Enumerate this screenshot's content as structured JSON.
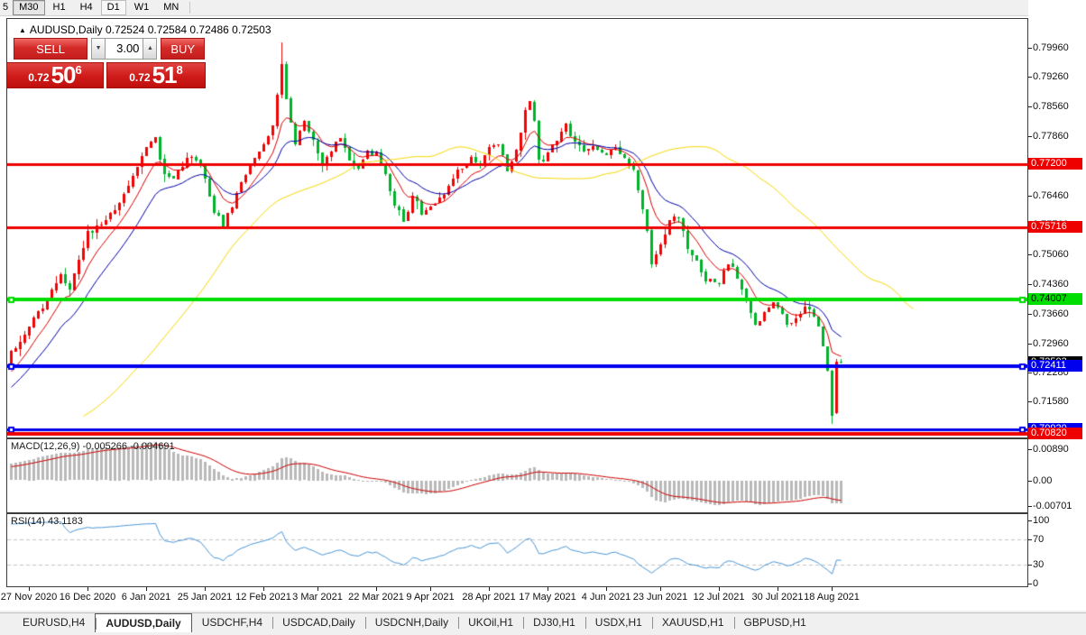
{
  "toolbar": {
    "timeframes": [
      {
        "label": "5",
        "state": "partial"
      },
      {
        "label": "M30",
        "state": "pressed"
      },
      {
        "label": "H1",
        "state": "normal"
      },
      {
        "label": "H4",
        "state": "normal"
      },
      {
        "label": "D1",
        "state": "highlight"
      },
      {
        "label": "W1",
        "state": "normal"
      },
      {
        "label": "MN",
        "state": "normal"
      }
    ]
  },
  "chart_header": {
    "collapse_icon": "▲",
    "symbol_title": "AUDUSD,Daily",
    "open": "0.72524",
    "high": "0.72584",
    "low": "0.72486",
    "close": "0.72503"
  },
  "one_click": {
    "sell_label": "SELL",
    "buy_label": "BUY",
    "volume": "3.00",
    "spinner_down": "▼",
    "spinner_up": "▲",
    "sell_small": "0.72",
    "sell_big": "50",
    "sell_sup": "6",
    "buy_small": "0.72",
    "buy_big": "51",
    "buy_sup": "8"
  },
  "indicators": {
    "macd_title": "MACD(12,26,9)",
    "macd_main_value": "-0.005266",
    "macd_signal_value": "-0.004691",
    "rsi_title": "RSI(14)",
    "rsi_value": "43.1183"
  },
  "axes": {
    "price_ticks": [
      {
        "label": "0.79960",
        "price": 0.7996
      },
      {
        "label": "0.79260",
        "price": 0.7926
      },
      {
        "label": "0.78560",
        "price": 0.7856
      },
      {
        "label": "0.77860",
        "price": 0.7786
      },
      {
        "label": "0.77160",
        "price": 0.7716
      },
      {
        "label": "0.76460",
        "price": 0.7646
      },
      {
        "label": "0.75760",
        "price": 0.7576
      },
      {
        "label": "0.75060",
        "price": 0.7506
      },
      {
        "label": "0.74360",
        "price": 0.7436
      },
      {
        "label": "0.73660",
        "price": 0.7366
      },
      {
        "label": "0.72960",
        "price": 0.7296
      },
      {
        "label": "0.72280",
        "price": 0.7228
      },
      {
        "label": "0.71580",
        "price": 0.7158
      }
    ],
    "macd_ticks": [
      {
        "label": "0.00890",
        "y": 497.5
      },
      {
        "label": "0.00",
        "y": 532.5
      },
      {
        "label": "-0.00701",
        "y": 560.5
      }
    ],
    "rsi_ticks": [
      {
        "label": "100",
        "v": 100
      },
      {
        "label": "70",
        "v": 70
      },
      {
        "label": "30",
        "v": 30
      },
      {
        "label": "0",
        "v": 0
      }
    ],
    "time_ticks": [
      {
        "label": "27 Nov 2020",
        "i": 4
      },
      {
        "label": "16 Dec 2020",
        "i": 17
      },
      {
        "label": "6 Jan 2021",
        "i": 30
      },
      {
        "label": "25 Jan 2021",
        "i": 43
      },
      {
        "label": "12 Feb 2021",
        "i": 56
      },
      {
        "label": "3 Mar 2021",
        "i": 68
      },
      {
        "label": "22 Mar 2021",
        "i": 81
      },
      {
        "label": "9 Apr 2021",
        "i": 93
      },
      {
        "label": "28 Apr 2021",
        "i": 106
      },
      {
        "label": "17 May 2021",
        "i": 119
      },
      {
        "label": "4 Jun 2021",
        "i": 132
      },
      {
        "label": "23 Jun 2021",
        "i": 144
      },
      {
        "label": "12 Jul 2021",
        "i": 157
      },
      {
        "label": "30 Jul 2021",
        "i": 170
      },
      {
        "label": "18 Aug 2021",
        "i": 182
      }
    ]
  },
  "hlines": [
    {
      "price": 0.772,
      "color": "#ee0000",
      "width": 3,
      "badge": "0.77200",
      "badge_bg": "#ee0000",
      "badge_fg": "#ffffff",
      "handles": false
    },
    {
      "price": 0.75716,
      "color": "#ee0000",
      "width": 3,
      "badge": "0.75716",
      "badge_bg": "#ee0000",
      "badge_fg": "#ffffff",
      "handles": false
    },
    {
      "price": 0.74007,
      "color": "#00dd00",
      "width": 4,
      "badge": "0.74007",
      "badge_bg": "#00dd00",
      "badge_fg": "#000000",
      "handles": true
    },
    {
      "price": 0.72411,
      "color": "#0000ee",
      "width": 4,
      "badge": "0.72411",
      "badge_bg": "#0000ee",
      "badge_fg": "#ffffff",
      "handles": true
    },
    {
      "price": 0.7092,
      "color": "#0000ee",
      "width": 3,
      "badge": "0.70920",
      "badge_bg": "#0000ee",
      "badge_fg": "#ffffff",
      "handles": true
    },
    {
      "price": 0.7082,
      "color": "#ee0000",
      "width": 4,
      "badge": "0.70820",
      "badge_bg": "#ee0000",
      "badge_fg": "#ffffff",
      "handles": false
    }
  ],
  "bid_badge": {
    "label": "0.72503",
    "price": 0.72503,
    "bg": "#000000",
    "fg": "#ffffff"
  },
  "chart_data": {
    "type": "candlestick",
    "symbol": "AUDUSD",
    "timeframe": "Daily",
    "current_bar": {
      "open": 0.72524,
      "high": 0.72584,
      "low": 0.72486,
      "close": 0.72503
    },
    "bars_visible": 185,
    "up_color": "#ee0505",
    "down_color": "#00b22c",
    "noise": 0.0011,
    "wick": 0.0022,
    "price_anchors": [
      [
        -45,
        0.704
      ],
      [
        -35,
        0.7068
      ],
      [
        -25,
        0.7032
      ],
      [
        -15,
        0.7128
      ],
      [
        -8,
        0.7188
      ],
      [
        -1,
        0.7248
      ],
      [
        0,
        0.727
      ],
      [
        4,
        0.7335
      ],
      [
        8,
        0.74
      ],
      [
        11,
        0.746
      ],
      [
        13,
        0.743
      ],
      [
        17,
        0.7555
      ],
      [
        20,
        0.7585
      ],
      [
        23,
        0.761
      ],
      [
        26,
        0.767
      ],
      [
        30,
        0.776
      ],
      [
        32,
        0.7775
      ],
      [
        34,
        0.7695
      ],
      [
        36,
        0.769
      ],
      [
        39,
        0.774
      ],
      [
        42,
        0.772
      ],
      [
        45,
        0.761
      ],
      [
        47,
        0.7575
      ],
      [
        50,
        0.7645
      ],
      [
        53,
        0.772
      ],
      [
        56,
        0.7765
      ],
      [
        58,
        0.7815
      ],
      [
        60,
        0.796
      ],
      [
        61,
        0.7875
      ],
      [
        63,
        0.777
      ],
      [
        65,
        0.7825
      ],
      [
        67,
        0.778
      ],
      [
        69,
        0.772
      ],
      [
        71,
        0.7748
      ],
      [
        73,
        0.7788
      ],
      [
        75,
        0.7725
      ],
      [
        77,
        0.7705
      ],
      [
        79,
        0.775
      ],
      [
        81,
        0.7748
      ],
      [
        83,
        0.7695
      ],
      [
        85,
        0.7618
      ],
      [
        87,
        0.7585
      ],
      [
        89,
        0.7642
      ],
      [
        91,
        0.7605
      ],
      [
        93,
        0.7618
      ],
      [
        96,
        0.7652
      ],
      [
        99,
        0.7698
      ],
      [
        102,
        0.7732
      ],
      [
        104,
        0.7718
      ],
      [
        106,
        0.7758
      ],
      [
        108,
        0.7772
      ],
      [
        110,
        0.7712
      ],
      [
        112,
        0.7748
      ],
      [
        114,
        0.7845
      ],
      [
        115,
        0.7868
      ],
      [
        116,
        0.783
      ],
      [
        117,
        0.7732
      ],
      [
        119,
        0.7738
      ],
      [
        121,
        0.7782
      ],
      [
        123,
        0.7808
      ],
      [
        125,
        0.7775
      ],
      [
        127,
        0.7748
      ],
      [
        129,
        0.7756
      ],
      [
        132,
        0.7742
      ],
      [
        134,
        0.7762
      ],
      [
        136,
        0.7736
      ],
      [
        138,
        0.771
      ],
      [
        140,
        0.7612
      ],
      [
        141,
        0.7562
      ],
      [
        142,
        0.7482
      ],
      [
        144,
        0.7532
      ],
      [
        146,
        0.7582
      ],
      [
        148,
        0.7592
      ],
      [
        150,
        0.7522
      ],
      [
        152,
        0.7492
      ],
      [
        154,
        0.7442
      ],
      [
        157,
        0.7438
      ],
      [
        159,
        0.7488
      ],
      [
        161,
        0.7452
      ],
      [
        163,
        0.7398
      ],
      [
        165,
        0.7332
      ],
      [
        167,
        0.7362
      ],
      [
        169,
        0.7396
      ],
      [
        170,
        0.7388
      ],
      [
        172,
        0.7342
      ],
      [
        174,
        0.7356
      ],
      [
        176,
        0.7382
      ],
      [
        178,
        0.7366
      ],
      [
        179,
        0.733
      ],
      [
        180,
        0.7296
      ],
      [
        181,
        0.7232
      ],
      [
        182,
        0.7128
      ],
      [
        183,
        0.7252
      ],
      [
        184,
        0.72503
      ]
    ],
    "overrides": {
      "60": {
        "h": 0.8007
      },
      "182": {
        "l": 0.7106
      },
      "183": {
        "o": 0.7132,
        "c": 0.7252
      },
      "184": {
        "o": 0.72524,
        "h": 0.72584,
        "l": 0.72486,
        "c": 0.72503
      }
    },
    "ma": [
      {
        "period": 8,
        "type": "ema",
        "color": "#dd0000",
        "shift": 0
      },
      {
        "period": 17,
        "type": "ema",
        "color": "#0000aa",
        "shift": 0
      },
      {
        "period": 34,
        "type": "sma",
        "color": "#f7d800",
        "shift": 16
      }
    ],
    "macd": {
      "fast": 12,
      "slow": 26,
      "signal": 9,
      "bar_color": "#b9b9b9",
      "signal_color": "#cc0000"
    },
    "rsi": {
      "period": 14,
      "color": "#4a96d9",
      "levels": [
        70,
        30
      ],
      "level_color": "#c4c4c4"
    }
  },
  "tabs": {
    "items": [
      {
        "label": "EURUSD,H4",
        "active": false
      },
      {
        "label": "AUDUSD,Daily",
        "active": true
      },
      {
        "label": "USDCHF,H4",
        "active": false
      },
      {
        "label": "USDCAD,Daily",
        "active": false
      },
      {
        "label": "USDCNH,Daily",
        "active": false
      },
      {
        "label": "UKOil,H1",
        "active": false
      },
      {
        "label": "DJ30,H1",
        "active": false
      },
      {
        "label": "USDX,H1",
        "active": false
      },
      {
        "label": "XAUUSD,H1",
        "active": false
      },
      {
        "label": "GBPUSD,H1",
        "active": false
      }
    ],
    "scroll_left": "◄",
    "scroll_right": "►"
  }
}
